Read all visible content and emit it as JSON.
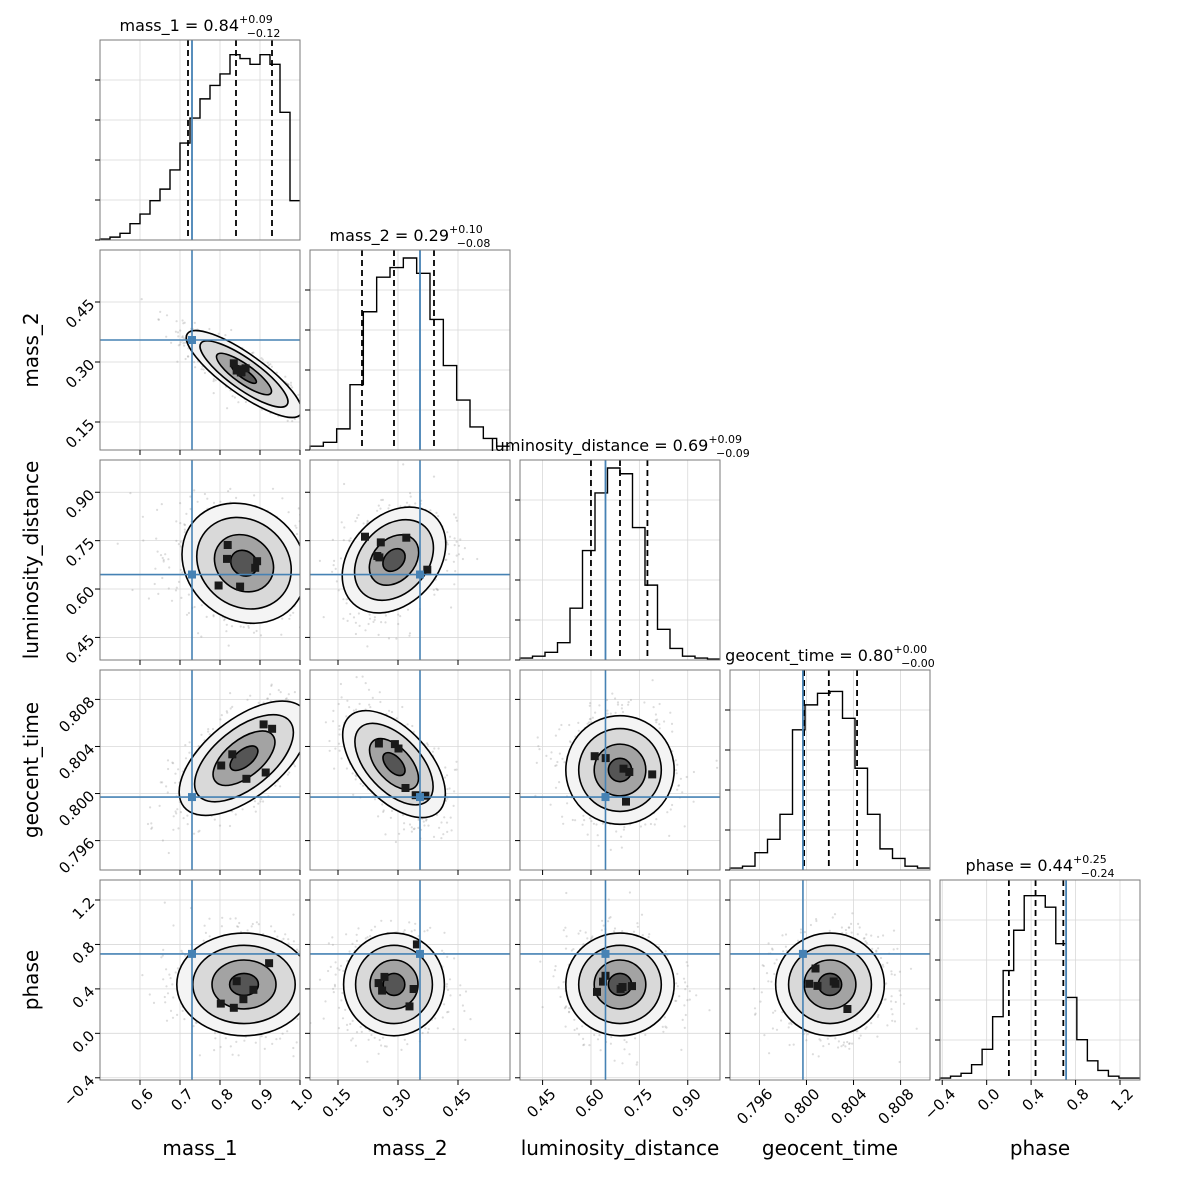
{
  "chart_data": {
    "type": "corner",
    "parameters": [
      "mass_1",
      "mass_2",
      "luminosity_distance",
      "geocent_time",
      "phase"
    ],
    "ranges": {
      "mass_1": [
        0.5,
        1.0
      ],
      "mass_2": [
        0.08,
        0.58
      ],
      "luminosity_distance": [
        0.38,
        1.0
      ],
      "geocent_time": [
        0.7935,
        0.8105
      ],
      "phase": [
        -0.42,
        1.38
      ]
    },
    "truths": {
      "mass_1": 0.73,
      "mass_2": 0.355,
      "luminosity_distance": 0.645,
      "geocent_time": 0.7997,
      "phase": 0.715
    },
    "truth_color": "#4682b4",
    "summaries": [
      {
        "param": "mass_1",
        "label": "mass_1",
        "median": "0.84",
        "plus": "+0.09",
        "minus": "−0.12",
        "quantiles": [
          0.72,
          0.84,
          0.93
        ]
      },
      {
        "param": "mass_2",
        "label": "mass_2",
        "median": "0.29",
        "plus": "+0.10",
        "minus": "−0.08",
        "quantiles": [
          0.21,
          0.29,
          0.39
        ]
      },
      {
        "param": "luminosity_distance",
        "label": "luminosity_distance",
        "median": "0.69",
        "plus": "+0.09",
        "minus": "−0.09",
        "quantiles": [
          0.6,
          0.69,
          0.775
        ]
      },
      {
        "param": "geocent_time",
        "label": "geocent_time",
        "median": "0.80",
        "plus": "+0.00",
        "minus": "−0.00",
        "quantiles": [
          0.7998,
          0.8019,
          0.8043
        ]
      },
      {
        "param": "phase",
        "label": "phase",
        "median": "0.44",
        "plus": "+0.25",
        "minus": "−0.24",
        "quantiles": [
          0.2,
          0.44,
          0.69
        ]
      }
    ],
    "histograms": {
      "mass_1": [
        0.005,
        0.015,
        0.035,
        0.085,
        0.135,
        0.205,
        0.265,
        0.365,
        0.505,
        0.635,
        0.735,
        0.805,
        0.865,
        0.965,
        0.945,
        0.915,
        0.965,
        0.915,
        0.665,
        0.205
      ],
      "mass_2": [
        0.02,
        0.04,
        0.11,
        0.34,
        0.72,
        0.9,
        0.95,
        1.0,
        0.92,
        0.68,
        0.44,
        0.26,
        0.12,
        0.06,
        0.02
      ],
      "luminosity_distance": [
        0.01,
        0.02,
        0.04,
        0.09,
        0.27,
        0.57,
        0.87,
        1.0,
        0.97,
        0.69,
        0.39,
        0.16,
        0.06,
        0.02,
        0.01,
        0.005
      ],
      "geocent_time": [
        0.01,
        0.02,
        0.09,
        0.16,
        0.29,
        0.73,
        0.86,
        0.92,
        0.93,
        0.79,
        0.53,
        0.29,
        0.11,
        0.06,
        0.02,
        0.01
      ],
      "phase": [
        0.01,
        0.02,
        0.035,
        0.08,
        0.16,
        0.33,
        0.57,
        0.78,
        0.96,
        0.96,
        0.9,
        0.71,
        0.43,
        0.21,
        0.1,
        0.05,
        0.02,
        0.01,
        0.01
      ]
    },
    "histogram_ranges": {
      "mass_1": [
        0.5,
        1.0
      ],
      "mass_2": [
        0.08,
        0.58
      ],
      "luminosity_distance": [
        0.38,
        1.0
      ],
      "geocent_time": [
        0.7935,
        0.8105
      ],
      "phase": [
        -0.42,
        1.38
      ]
    },
    "density_peaks": {
      "mass_1|mass_2": {
        "mean": [
          0.86,
          0.27
        ],
        "sd": [
          0.07,
          0.05
        ],
        "corr": -0.85
      },
      "mass_1|luminosity_distance": {
        "mean": [
          0.86,
          0.68
        ],
        "sd": [
          0.08,
          0.08
        ],
        "corr": -0.15
      },
      "mass_2|luminosity_distance": {
        "mean": [
          0.29,
          0.69
        ],
        "sd": [
          0.06,
          0.08
        ],
        "corr": 0.3
      },
      "mass_1|geocent_time": {
        "mean": [
          0.86,
          0.803
        ],
        "sd": [
          0.08,
          0.0022
        ],
        "corr": 0.6
      },
      "mass_2|geocent_time": {
        "mean": [
          0.29,
          0.8025
        ],
        "sd": [
          0.06,
          0.0022
        ],
        "corr": -0.55
      },
      "luminosity_distance|geocent_time": {
        "mean": [
          0.69,
          0.802
        ],
        "sd": [
          0.08,
          0.0022
        ],
        "corr": 0.0
      },
      "mass_1|phase": {
        "mean": [
          0.86,
          0.44
        ],
        "sd": [
          0.08,
          0.22
        ],
        "corr": 0.0
      },
      "mass_2|phase": {
        "mean": [
          0.29,
          0.44
        ],
        "sd": [
          0.06,
          0.22
        ],
        "corr": 0.0
      },
      "luminosity_distance|phase": {
        "mean": [
          0.69,
          0.44
        ],
        "sd": [
          0.08,
          0.22
        ],
        "corr": 0.0
      },
      "geocent_time|phase": {
        "mean": [
          0.802,
          0.44
        ],
        "sd": [
          0.0022,
          0.22
        ],
        "corr": 0.0
      }
    },
    "ticks": {
      "mass_1": [
        "0.6",
        "0.7",
        "0.8",
        "0.9",
        "1.0"
      ],
      "mass_2": [
        "0.15",
        "0.30",
        "0.45"
      ],
      "luminosity_distance": [
        "0.45",
        "0.60",
        "0.75",
        "0.90"
      ],
      "geocent_time": [
        "0.796",
        "0.800",
        "0.804",
        "0.808"
      ],
      "phase": [
        "−0.4",
        "0.0",
        "0.4",
        "0.8",
        "1.2"
      ]
    },
    "grid": true,
    "contour_color": "#000000"
  }
}
